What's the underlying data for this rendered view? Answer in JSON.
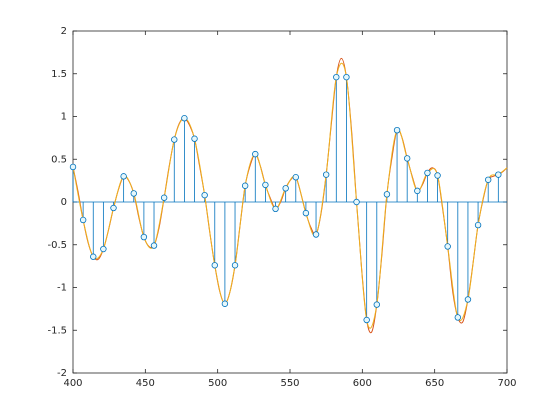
{
  "chart_data": {
    "type": "stem",
    "xlim": [
      400,
      700
    ],
    "xticks": [
      400,
      450,
      500,
      550,
      600,
      650,
      700
    ],
    "ylim": [
      -2,
      2
    ],
    "yticks": [
      -2,
      -1.5,
      -1,
      -0.5,
      0,
      0.5,
      1,
      1.5,
      2
    ],
    "series": [
      {
        "type": "stem",
        "color": "#0072bd",
        "x": [
          400,
          407,
          414,
          421,
          428,
          435,
          442,
          449,
          456,
          463,
          470,
          477,
          484,
          491,
          498,
          505,
          512,
          519,
          526,
          533,
          540,
          547,
          554,
          561,
          568,
          575,
          582,
          589,
          596,
          603,
          610,
          617,
          624,
          631,
          638,
          645,
          652,
          659,
          666,
          673,
          680,
          687,
          694
        ],
        "values": [
          0.41,
          -0.21,
          -0.64,
          -0.55,
          -0.07,
          0.3,
          0.1,
          -0.41,
          -0.51,
          0.05,
          0.73,
          0.98,
          0.74,
          0.08,
          -0.74,
          -1.19,
          -0.74,
          0.19,
          0.56,
          0.2,
          -0.08,
          0.16,
          0.29,
          -0.13,
          -0.38,
          0.32,
          1.46,
          1.46,
          0,
          -1.38,
          -1.2,
          0.09,
          0.84,
          0.51,
          0.13,
          0.34,
          0.31,
          -0.52,
          -1.35,
          -1.14,
          -0.27,
          0.26,
          0.32
        ]
      },
      {
        "type": "line",
        "color": "#d95319",
        "x": [
          400,
          403.5,
          407,
          410.5,
          414,
          417.5,
          421,
          424.5,
          428,
          431.5,
          435,
          438.5,
          442,
          445.5,
          449,
          452.5,
          456,
          459.5,
          463,
          466.5,
          470,
          473.5,
          477,
          480.5,
          484,
          487.5,
          491,
          494.5,
          498,
          501.5,
          505,
          508.5,
          512,
          515.5,
          519,
          522.5,
          526,
          529.5,
          533,
          536.5,
          540,
          543.5,
          547,
          550.5,
          554,
          557.5,
          561,
          564.5,
          568,
          571.5,
          575,
          578.5,
          582,
          585.5,
          589,
          592.5,
          596,
          599.5,
          603,
          606.5,
          610,
          613.5,
          617,
          620.5,
          624,
          627.5,
          631,
          634.5,
          638,
          641.5,
          645,
          648.5,
          652,
          655.5,
          659,
          662.5,
          666,
          669.5,
          673,
          676.5,
          680,
          683.5,
          687,
          690.5,
          694,
          697.5,
          700
        ],
        "values": [
          0.41,
          0.12,
          -0.21,
          -0.48,
          -0.64,
          -0.67,
          -0.55,
          -0.33,
          -0.07,
          0.15,
          0.3,
          0.25,
          0.1,
          -0.18,
          -0.41,
          -0.52,
          -0.51,
          -0.3,
          0.05,
          0.42,
          0.73,
          0.92,
          0.98,
          0.9,
          0.74,
          0.42,
          0.08,
          -0.35,
          -0.74,
          -1.05,
          -1.19,
          -1.05,
          -0.74,
          -0.27,
          0.19,
          0.43,
          0.56,
          0.42,
          0.2,
          0.04,
          -0.08,
          0,
          0.16,
          0.26,
          0.29,
          0.1,
          -0.13,
          -0.3,
          -0.38,
          -0.13,
          0.32,
          0.9,
          1.46,
          1.68,
          1.46,
          0.85,
          0,
          -0.78,
          -1.38,
          -1.52,
          -1.2,
          -0.62,
          0.09,
          0.52,
          0.84,
          0.75,
          0.51,
          0.3,
          0.13,
          0.2,
          0.34,
          0.4,
          0.31,
          -0.08,
          -0.52,
          -1.05,
          -1.35,
          -1.4,
          -1.14,
          -0.72,
          -0.27,
          0.03,
          0.26,
          0.3,
          0.32,
          0.36,
          0.4
        ]
      },
      {
        "type": "line",
        "color": "#edb120",
        "x": [
          400,
          407,
          414,
          421,
          428,
          435,
          442,
          449,
          456,
          463,
          470,
          477,
          484,
          491,
          498,
          505,
          512,
          519,
          526,
          533,
          540,
          547,
          554,
          561,
          568,
          575,
          582,
          589,
          596,
          603,
          610,
          617,
          624,
          631,
          638,
          645,
          652,
          659,
          666,
          673,
          680,
          687,
          694,
          700
        ],
        "values": [
          0.41,
          -0.21,
          -0.64,
          -0.55,
          -0.07,
          0.3,
          0.1,
          -0.41,
          -0.51,
          0.05,
          0.73,
          0.98,
          0.74,
          0.08,
          -0.74,
          -1.19,
          -0.74,
          0.19,
          0.56,
          0.2,
          -0.08,
          0.16,
          0.29,
          -0.13,
          -0.38,
          0.32,
          1.46,
          1.46,
          0,
          -1.38,
          -1.2,
          0.09,
          0.84,
          0.51,
          0.13,
          0.34,
          0.31,
          -0.52,
          -1.35,
          -1.14,
          -0.27,
          0.26,
          0.32,
          0.4
        ]
      }
    ]
  }
}
